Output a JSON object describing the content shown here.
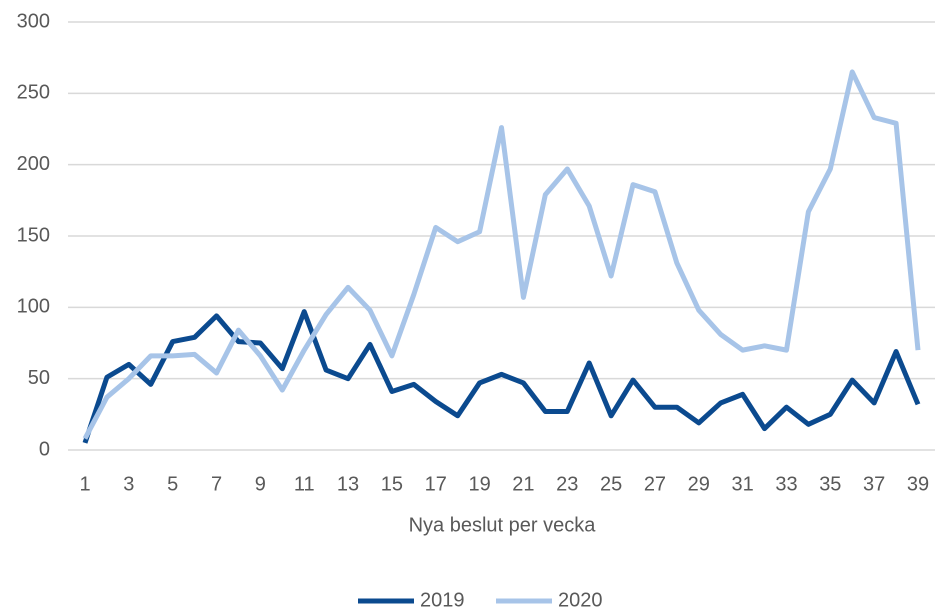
{
  "chart_data": {
    "type": "line",
    "x_label": "Nya beslut per vecka",
    "x": [
      1,
      2,
      3,
      4,
      5,
      6,
      7,
      8,
      9,
      10,
      11,
      12,
      13,
      14,
      15,
      16,
      17,
      18,
      19,
      20,
      21,
      22,
      23,
      24,
      25,
      26,
      27,
      28,
      29,
      30,
      31,
      32,
      33,
      34,
      35,
      36,
      37,
      38,
      39
    ],
    "xlim": [
      1,
      39
    ],
    "xticks": [
      1,
      3,
      5,
      7,
      9,
      11,
      13,
      15,
      17,
      19,
      21,
      23,
      25,
      27,
      29,
      31,
      33,
      35,
      37,
      39
    ],
    "ylim": [
      0,
      300
    ],
    "yticks": [
      0,
      50,
      100,
      150,
      200,
      250,
      300
    ],
    "grid": true,
    "legend": "bottom",
    "series": [
      {
        "name": "2019",
        "color": "#0b4a8f",
        "values": [
          5,
          51,
          60,
          46,
          76,
          79,
          94,
          76,
          75,
          57,
          97,
          56,
          50,
          74,
          41,
          46,
          34,
          24,
          47,
          53,
          47,
          27,
          27,
          61,
          24,
          49,
          30,
          30,
          19,
          33,
          39,
          15,
          30,
          18,
          25,
          49,
          33,
          69,
          32
        ]
      },
      {
        "name": "2020",
        "color": "#a7c4e8",
        "values": [
          8,
          37,
          50,
          66,
          66,
          67,
          54,
          84,
          66,
          42,
          70,
          95,
          114,
          98,
          66,
          109,
          156,
          146,
          153,
          226,
          107,
          179,
          197,
          171,
          122,
          186,
          181,
          131,
          98,
          81,
          70,
          73,
          70,
          167,
          197,
          265,
          233,
          229,
          70
        ]
      }
    ]
  }
}
